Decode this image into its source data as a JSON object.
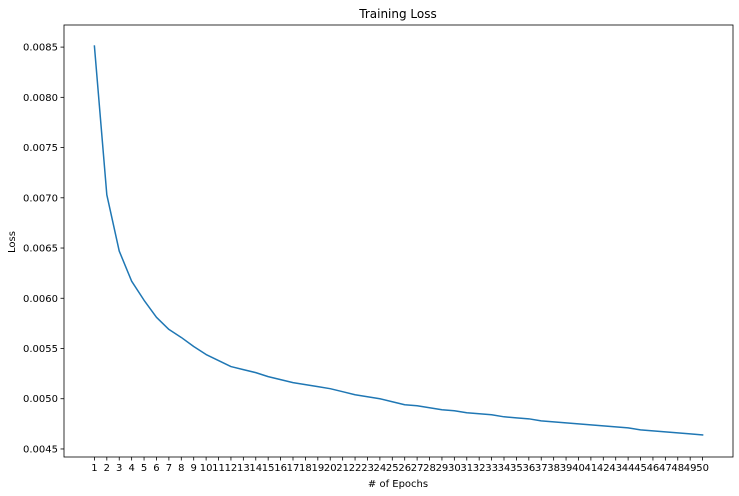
{
  "chart_data": {
    "type": "line",
    "title": "Training Loss",
    "xlabel": "# of Epochs",
    "ylabel": "Loss",
    "grid": false,
    "legend": "none",
    "line_color": "#1f77b4",
    "x": [
      1,
      2,
      3,
      4,
      5,
      6,
      7,
      8,
      9,
      10,
      11,
      12,
      13,
      14,
      15,
      16,
      17,
      18,
      19,
      20,
      21,
      22,
      23,
      24,
      25,
      26,
      27,
      28,
      29,
      30,
      31,
      32,
      33,
      34,
      35,
      36,
      37,
      38,
      39,
      40,
      41,
      42,
      43,
      44,
      45,
      46,
      47,
      48,
      49,
      50
    ],
    "xticks": [
      "1",
      "2",
      "3",
      "4",
      "5",
      "6",
      "7",
      "8",
      "9",
      "10",
      "11",
      "12",
      "13",
      "14",
      "15",
      "16",
      "17",
      "18",
      "19",
      "20",
      "21",
      "22",
      "23",
      "24",
      "25",
      "26",
      "27",
      "28",
      "29",
      "30",
      "31",
      "32",
      "33",
      "34",
      "35",
      "36",
      "37",
      "38",
      "39",
      "40",
      "41",
      "42",
      "43",
      "44",
      "45",
      "46",
      "47",
      "48",
      "49",
      "50"
    ],
    "xlim": [
      -1.45,
      52.45
    ],
    "ylim": [
      0.00442,
      0.00872
    ],
    "yticks": [
      "0.0045",
      "0.0050",
      "0.0055",
      "0.0060",
      "0.0065",
      "0.0070",
      "0.0075",
      "0.0080",
      "0.0085"
    ],
    "series": [
      {
        "values": [
          0.00851,
          0.00703,
          0.00647,
          0.00617,
          0.00598,
          0.00581,
          0.00569,
          0.00561,
          0.00552,
          0.00544,
          0.00538,
          0.00532,
          0.00529,
          0.00526,
          0.00522,
          0.00519,
          0.00516,
          0.00514,
          0.00512,
          0.0051,
          0.00507,
          0.00504,
          0.00502,
          0.005,
          0.00497,
          0.00494,
          0.00493,
          0.00491,
          0.00489,
          0.00488,
          0.00486,
          0.00485,
          0.00484,
          0.00482,
          0.00481,
          0.0048,
          0.00478,
          0.00477,
          0.00476,
          0.00475,
          0.00474,
          0.00473,
          0.00472,
          0.00471,
          0.00469,
          0.00468,
          0.00467,
          0.00466,
          0.00465,
          0.00464
        ]
      }
    ]
  }
}
